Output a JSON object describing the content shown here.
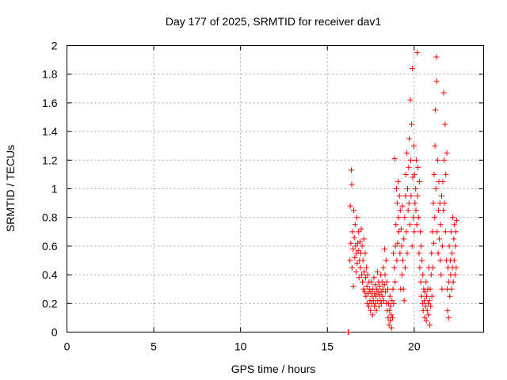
{
  "chart_data": {
    "type": "scatter",
    "title": "Day 177 of 2025, SRMTID for receiver dav1",
    "xlabel": "GPS time / hours",
    "ylabel": "SRMTID / TECUs",
    "xlim": [
      0,
      24
    ],
    "ylim": [
      0,
      2
    ],
    "x_ticks": [
      0,
      5,
      10,
      15,
      20
    ],
    "y_ticks": [
      0,
      0.2,
      0.4,
      0.6,
      0.8,
      1,
      1.2,
      1.4,
      1.6,
      1.8,
      2
    ],
    "x_tick_labels": [
      "0",
      "5",
      "10",
      "15",
      "20"
    ],
    "y_tick_labels": [
      "0",
      "0.2",
      "0.4",
      "0.6",
      "0.8",
      "1",
      "1.2",
      "1.4",
      "1.6",
      "1.8",
      "2"
    ],
    "grid": true,
    "marker": "+",
    "color": "#ff0000",
    "series": [
      {
        "name": "dav1",
        "points": [
          [
            16.2,
            0.0
          ],
          [
            16.22,
            0.0
          ],
          [
            16.3,
            0.5
          ],
          [
            16.32,
            0.88
          ],
          [
            16.35,
            0.62
          ],
          [
            16.38,
            1.13
          ],
          [
            16.4,
            1.03
          ],
          [
            16.42,
            0.45
          ],
          [
            16.45,
            0.7
          ],
          [
            16.48,
            0.58
          ],
          [
            16.5,
            0.32
          ],
          [
            16.52,
            0.85
          ],
          [
            16.55,
            0.66
          ],
          [
            16.58,
            0.52
          ],
          [
            16.6,
            0.75
          ],
          [
            16.62,
            0.6
          ],
          [
            16.65,
            0.42
          ],
          [
            16.68,
            0.55
          ],
          [
            16.7,
            0.8
          ],
          [
            16.72,
            0.48
          ],
          [
            16.75,
            0.62
          ],
          [
            16.78,
            0.57
          ],
          [
            16.8,
            0.7
          ],
          [
            16.82,
            0.38
          ],
          [
            16.85,
            0.5
          ],
          [
            16.88,
            0.63
          ],
          [
            16.9,
            0.45
          ],
          [
            16.92,
            0.55
          ],
          [
            16.95,
            0.72
          ],
          [
            16.98,
            0.4
          ],
          [
            17.0,
            0.6
          ],
          [
            17.02,
            0.35
          ],
          [
            17.05,
            0.5
          ],
          [
            17.08,
            0.3
          ],
          [
            17.1,
            0.65
          ],
          [
            17.12,
            0.42
          ],
          [
            17.15,
            0.28
          ],
          [
            17.18,
            0.55
          ],
          [
            17.2,
            0.38
          ],
          [
            17.22,
            0.25
          ],
          [
            17.25,
            0.45
          ],
          [
            17.28,
            0.32
          ],
          [
            17.3,
            0.2
          ],
          [
            17.32,
            0.4
          ],
          [
            17.35,
            0.27
          ],
          [
            17.38,
            0.18
          ],
          [
            17.4,
            0.35
          ],
          [
            17.42,
            0.3
          ],
          [
            17.45,
            0.22
          ],
          [
            17.48,
            0.15
          ],
          [
            17.5,
            0.28
          ],
          [
            17.52,
            0.35
          ],
          [
            17.55,
            0.2
          ],
          [
            17.58,
            0.25
          ],
          [
            17.6,
            0.12
          ],
          [
            17.62,
            0.3
          ],
          [
            17.65,
            0.22
          ],
          [
            17.68,
            0.38
          ],
          [
            17.7,
            0.18
          ],
          [
            17.72,
            0.27
          ],
          [
            17.75,
            0.33
          ],
          [
            17.78,
            0.2
          ],
          [
            17.8,
            0.25
          ],
          [
            17.82,
            0.15
          ],
          [
            17.85,
            0.3
          ],
          [
            17.88,
            0.42
          ],
          [
            17.9,
            0.22
          ],
          [
            17.92,
            0.28
          ],
          [
            17.95,
            0.35
          ],
          [
            17.98,
            0.18
          ],
          [
            18.0,
            0.26
          ],
          [
            18.02,
            0.32
          ],
          [
            18.05,
            0.22
          ],
          [
            18.08,
            0.4
          ],
          [
            18.1,
            0.28
          ],
          [
            18.12,
            0.2
          ],
          [
            18.15,
            0.35
          ],
          [
            18.18,
            0.25
          ],
          [
            18.2,
            0.3
          ],
          [
            18.22,
            0.45
          ],
          [
            18.25,
            0.22
          ],
          [
            18.28,
            0.33
          ],
          [
            18.3,
            0.58
          ],
          [
            18.32,
            0.4
          ],
          [
            18.35,
            0.28
          ],
          [
            18.38,
            0.5
          ],
          [
            18.4,
            0.2
          ],
          [
            18.42,
            0.35
          ],
          [
            18.45,
            0.15
          ],
          [
            18.48,
            0.3
          ],
          [
            18.5,
            0.1
          ],
          [
            18.52,
            0.2
          ],
          [
            18.55,
            0.05
          ],
          [
            18.58,
            0.15
          ],
          [
            18.6,
            0.25
          ],
          [
            18.62,
            0.08
          ],
          [
            18.65,
            0.18
          ],
          [
            18.68,
            0.12
          ],
          [
            18.7,
            0.03
          ],
          [
            18.72,
            0.22
          ],
          [
            18.75,
            0.1
          ],
          [
            18.78,
            0.3
          ],
          [
            18.8,
            0.55
          ],
          [
            18.82,
            0.2
          ],
          [
            18.85,
            0.45
          ],
          [
            18.88,
            1.21
          ],
          [
            18.9,
            0.35
          ],
          [
            18.92,
            0.6
          ],
          [
            18.95,
            0.75
          ],
          [
            18.98,
            1.0
          ],
          [
            19.0,
            0.5
          ],
          [
            19.02,
            0.9
          ],
          [
            19.05,
            0.62
          ],
          [
            19.08,
            1.05
          ],
          [
            19.1,
            0.8
          ],
          [
            19.12,
            0.7
          ],
          [
            19.15,
            0.95
          ],
          [
            19.18,
            0.55
          ],
          [
            19.2,
            0.85
          ],
          [
            19.22,
            0.3
          ],
          [
            19.25,
            0.72
          ],
          [
            19.28,
            0.6
          ],
          [
            19.3,
            0.4
          ],
          [
            19.32,
            0.88
          ],
          [
            19.35,
            0.5
          ],
          [
            19.38,
            0.3
          ],
          [
            19.4,
            0.65
          ],
          [
            19.42,
            0.22
          ],
          [
            19.45,
            0.8
          ],
          [
            19.48,
            0.45
          ],
          [
            19.5,
            0.95
          ],
          [
            19.52,
            1.1
          ],
          [
            19.55,
            0.7
          ],
          [
            19.58,
            1.25
          ],
          [
            19.6,
            0.55
          ],
          [
            19.62,
            1.0
          ],
          [
            19.65,
            0.85
          ],
          [
            19.68,
            1.15
          ],
          [
            19.7,
            0.9
          ],
          [
            19.72,
            1.35
          ],
          [
            19.75,
            0.75
          ],
          [
            19.78,
            1.62
          ],
          [
            19.8,
            1.2
          ],
          [
            19.82,
            0.95
          ],
          [
            19.85,
            1.45
          ],
          [
            19.88,
            0.6
          ],
          [
            19.9,
            1.84
          ],
          [
            19.92,
            1.08
          ],
          [
            19.95,
            0.8
          ],
          [
            19.98,
            1.3
          ],
          [
            20.0,
            0.7
          ],
          [
            20.02,
            1.1
          ],
          [
            20.05,
            0.9
          ],
          [
            20.08,
            1.0
          ],
          [
            20.1,
            0.85
          ],
          [
            20.12,
            1.2
          ],
          [
            20.15,
            0.75
          ],
          [
            20.18,
            1.95
          ],
          [
            20.2,
            0.95
          ],
          [
            20.22,
            1.15
          ],
          [
            20.25,
            0.8
          ],
          [
            20.28,
            0.55
          ],
          [
            20.3,
            1.05
          ],
          [
            20.32,
            0.45
          ],
          [
            20.35,
            0.7
          ],
          [
            20.38,
            0.35
          ],
          [
            20.4,
            0.6
          ],
          [
            20.42,
            0.25
          ],
          [
            20.45,
            0.5
          ],
          [
            20.48,
            0.2
          ],
          [
            20.5,
            0.4
          ],
          [
            20.52,
            0.15
          ],
          [
            20.55,
            0.3
          ],
          [
            20.58,
            0.22
          ],
          [
            20.6,
            0.1
          ],
          [
            20.62,
            0.28
          ],
          [
            20.65,
            0.18
          ],
          [
            20.68,
            0.35
          ],
          [
            20.7,
            0.08
          ],
          [
            20.72,
            0.25
          ],
          [
            20.75,
            0.15
          ],
          [
            20.78,
            0.3
          ],
          [
            20.8,
            0.2
          ],
          [
            20.82,
            0.12
          ],
          [
            20.85,
            0.45
          ],
          [
            20.88,
            0.22
          ],
          [
            20.9,
            0.05
          ],
          [
            20.92,
            0.3
          ],
          [
            20.95,
            0.18
          ],
          [
            20.98,
            0.4
          ],
          [
            21.0,
            0.55
          ],
          [
            21.02,
            0.25
          ],
          [
            21.05,
            0.7
          ],
          [
            21.08,
            0.45
          ],
          [
            21.1,
            0.9
          ],
          [
            21.12,
            0.62
          ],
          [
            21.15,
            1.1
          ],
          [
            21.18,
            0.8
          ],
          [
            21.2,
            1.3
          ],
          [
            21.22,
            1.55
          ],
          [
            21.25,
            1.0
          ],
          [
            21.28,
            1.92
          ],
          [
            21.3,
            1.75
          ],
          [
            21.32,
            0.7
          ],
          [
            21.35,
            1.2
          ],
          [
            21.38,
            0.55
          ],
          [
            21.4,
            0.85
          ],
          [
            21.42,
            1.05
          ],
          [
            21.45,
            0.65
          ],
          [
            21.48,
            0.9
          ],
          [
            21.5,
            0.5
          ],
          [
            21.52,
            0.75
          ],
          [
            21.55,
            0.4
          ],
          [
            21.58,
            0.95
          ],
          [
            21.6,
            0.3
          ],
          [
            21.62,
            0.6
          ],
          [
            21.65,
            1.05
          ],
          [
            21.68,
            0.85
          ],
          [
            21.7,
            1.67
          ],
          [
            21.72,
            1.2
          ],
          [
            21.75,
            0.9
          ],
          [
            21.78,
            1.45
          ],
          [
            21.8,
            0.7
          ],
          [
            21.82,
            1.1
          ],
          [
            21.85,
            0.5
          ],
          [
            21.88,
            1.25
          ],
          [
            21.9,
            0.3
          ],
          [
            21.92,
            0.15
          ],
          [
            21.95,
            0.45
          ],
          [
            21.98,
            0.1
          ],
          [
            22.0,
            0.35
          ],
          [
            22.02,
            0.6
          ],
          [
            22.05,
            0.25
          ],
          [
            22.08,
            0.5
          ],
          [
            22.1,
            0.4
          ],
          [
            22.12,
            0.7
          ],
          [
            22.15,
            0.3
          ],
          [
            22.18,
            0.55
          ],
          [
            22.2,
            0.45
          ],
          [
            22.22,
            0.8
          ],
          [
            22.25,
            0.35
          ],
          [
            22.28,
            0.65
          ],
          [
            22.3,
            0.5
          ],
          [
            22.32,
            0.75
          ],
          [
            22.35,
            0.4
          ],
          [
            22.38,
            0.6
          ],
          [
            22.4,
            0.7
          ],
          [
            22.42,
            0.45
          ],
          [
            22.45,
            0.78
          ]
        ]
      }
    ]
  }
}
